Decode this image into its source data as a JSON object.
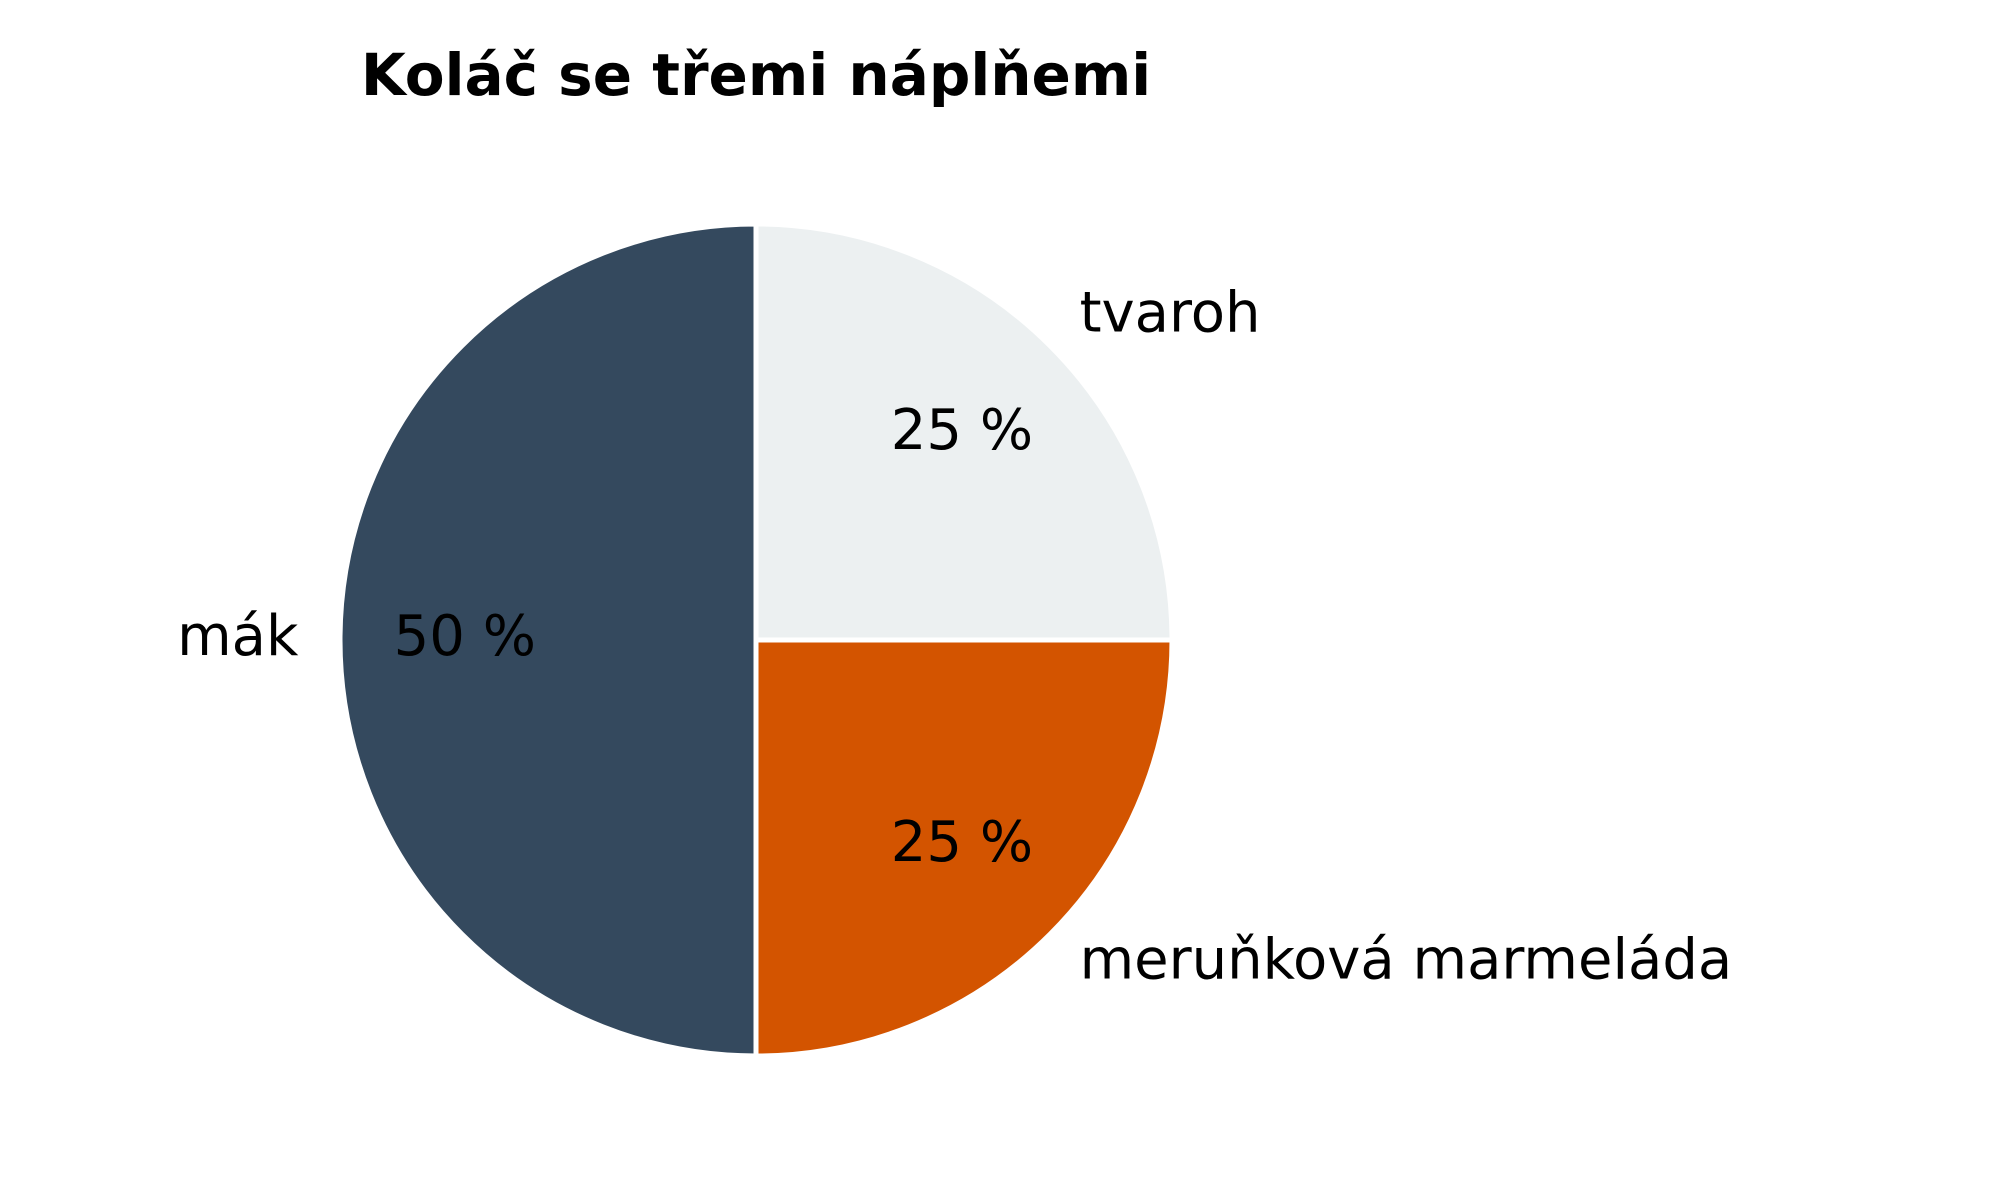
{
  "chart_data": {
    "type": "pie",
    "title": "Koláč se třemi náplňemi",
    "categories": [
      "tvaroh",
      "meruňková marmeláda",
      "mák"
    ],
    "values": [
      25,
      25,
      50
    ],
    "value_labels": [
      "25 %",
      "25 %",
      "50 %"
    ],
    "colors": [
      "#ecf0f1",
      "#d35400",
      "#34495e"
    ]
  }
}
